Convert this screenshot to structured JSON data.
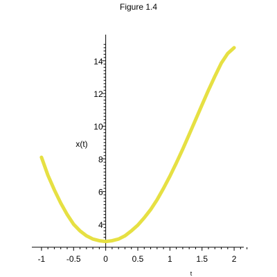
{
  "chart_data": {
    "type": "line",
    "title": "Figure 1.4",
    "xlabel": "t",
    "ylabel": "x(t)",
    "xlim": [
      -1.15,
      2.15
    ],
    "ylim": [
      2.6,
      15.6
    ],
    "xticks": [
      -1,
      -0.5,
      0,
      0.5,
      1,
      1.5,
      2
    ],
    "xtick_labels": [
      "-1",
      "-0.5",
      "0",
      "0.5",
      "1",
      "1.5",
      "2"
    ],
    "yticks": [
      4,
      6,
      8,
      10,
      12,
      14
    ],
    "ytick_labels": [
      "4",
      "6",
      "8",
      "10",
      "12",
      "14"
    ],
    "grid": false,
    "series": [
      {
        "color": "#e6e043",
        "x": [
          -1.0,
          -0.9,
          -0.8,
          -0.7,
          -0.6,
          -0.5,
          -0.4,
          -0.3,
          -0.2,
          -0.1,
          0.0,
          0.1,
          0.2,
          0.3,
          0.4,
          0.5,
          0.6,
          0.7,
          0.8,
          0.9,
          1.0,
          1.1,
          1.2,
          1.3,
          1.4,
          1.5,
          1.6,
          1.7,
          1.8,
          1.9,
          2.0
        ],
        "y": [
          8.1,
          7.0,
          6.1,
          5.3,
          4.6,
          4.0,
          3.6,
          3.3,
          3.1,
          3.0,
          2.95,
          3.0,
          3.1,
          3.3,
          3.6,
          3.95,
          4.4,
          4.9,
          5.5,
          6.2,
          6.95,
          7.75,
          8.6,
          9.5,
          10.4,
          11.3,
          12.2,
          13.05,
          13.85,
          14.45,
          14.8
        ]
      }
    ]
  }
}
